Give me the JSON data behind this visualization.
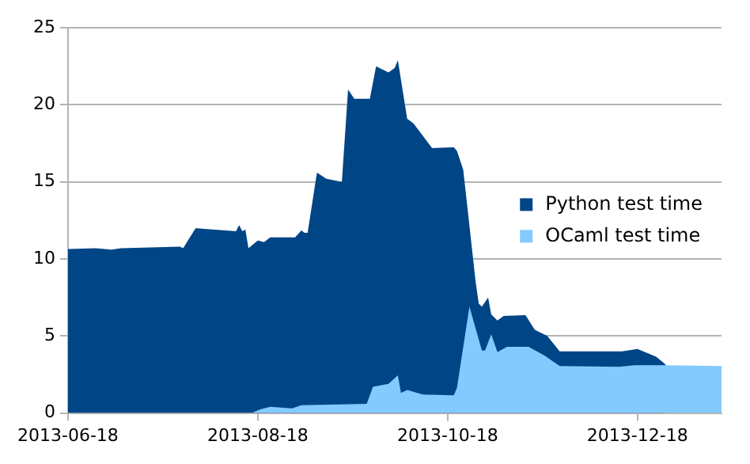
{
  "chart_data": {
    "type": "area",
    "xlim": [
      "2013-06-18",
      "2014-01-14"
    ],
    "xticks": [
      "2013-06-18",
      "2013-08-18",
      "2013-10-18",
      "2013-12-18"
    ],
    "ylim": [
      0,
      25
    ],
    "yticks": [
      0,
      5,
      10,
      15,
      20,
      25
    ],
    "grid": "y",
    "legend": "right",
    "series": [
      {
        "name": "Python test time",
        "color": "#004586",
        "x": [
          "2013-06-18",
          "2013-06-27",
          "2013-07-02",
          "2013-07-05",
          "2013-07-24",
          "2013-07-25",
          "2013-07-29",
          "2013-08-11",
          "2013-08-12",
          "2013-08-13",
          "2013-08-14",
          "2013-08-15",
          "2013-08-18",
          "2013-08-20",
          "2013-08-22",
          "2013-08-30",
          "2013-09-01",
          "2013-09-02",
          "2013-09-03",
          "2013-09-06",
          "2013-09-09",
          "2013-09-14",
          "2013-09-16",
          "2013-09-18",
          "2013-09-23",
          "2013-09-25",
          "2013-09-29",
          "2013-10-01",
          "2013-10-02",
          "2013-10-05",
          "2013-10-07",
          "2013-10-13",
          "2013-10-20",
          "2013-10-21",
          "2013-10-23",
          "2013-10-27",
          "2013-10-28",
          "2013-10-29",
          "2013-10-31",
          "2013-11-01",
          "2013-11-03",
          "2013-11-05",
          "2013-11-12",
          "2013-11-15",
          "2013-11-19",
          "2013-11-23",
          "2013-12-13",
          "2013-12-18",
          "2013-12-24",
          "2013-12-27"
        ],
        "values": [
          10.65,
          10.7,
          10.6,
          10.7,
          10.8,
          10.7,
          12.0,
          11.8,
          12.2,
          11.8,
          11.9,
          10.7,
          11.2,
          11.1,
          11.4,
          11.4,
          11.85,
          11.7,
          11.7,
          15.6,
          15.2,
          15.0,
          21.0,
          20.4,
          20.4,
          22.5,
          22.1,
          22.4,
          22.9,
          19.1,
          18.8,
          17.2,
          17.25,
          17.0,
          15.8,
          8.5,
          7.1,
          6.9,
          7.5,
          6.4,
          6.0,
          6.3,
          6.35,
          5.4,
          5.0,
          4.0,
          4.0,
          4.15,
          3.65,
          3.15
        ]
      },
      {
        "name": "OCaml test time",
        "color": "#83caff",
        "x": [
          "2013-06-18",
          "2013-08-16",
          "2013-08-19",
          "2013-08-22",
          "2013-08-29",
          "2013-09-01",
          "2013-09-22",
          "2013-09-24",
          "2013-09-29",
          "2013-10-02",
          "2013-10-03",
          "2013-10-05",
          "2013-10-10",
          "2013-10-20",
          "2013-10-21",
          "2013-10-25",
          "2013-10-29",
          "2013-10-30",
          "2013-11-01",
          "2013-11-03",
          "2013-11-06",
          "2013-11-13",
          "2013-11-18",
          "2013-11-23",
          "2013-12-12",
          "2013-12-17",
          "2013-12-27",
          "2014-01-14"
        ],
        "values": [
          0,
          0,
          0.25,
          0.4,
          0.3,
          0.5,
          0.6,
          1.7,
          1.9,
          2.45,
          1.3,
          1.5,
          1.2,
          1.15,
          1.65,
          6.9,
          4.05,
          4.05,
          5.1,
          3.95,
          4.3,
          4.3,
          3.75,
          3.05,
          3.0,
          3.1,
          3.1,
          3.05
        ]
      }
    ]
  }
}
